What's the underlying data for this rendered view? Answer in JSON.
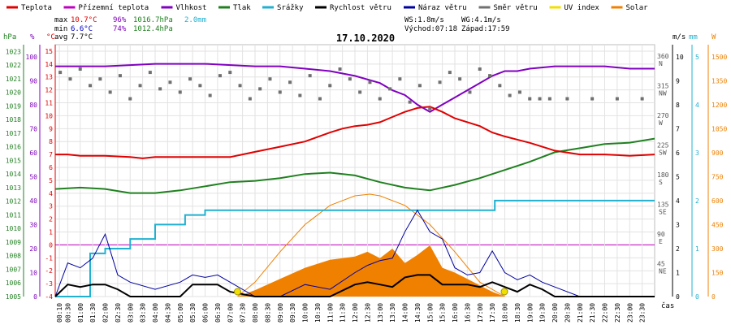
{
  "legend": [
    {
      "label": "Teplota",
      "color": "#e00000"
    },
    {
      "label": "Přízemní teplota",
      "color": "#c000c0"
    },
    {
      "label": "Vlhkost",
      "color": "#8000c0"
    },
    {
      "label": "Tlak",
      "color": "#208020"
    },
    {
      "label": "Srážky",
      "color": "#20b0d0"
    },
    {
      "label": "Rychlost větru",
      "color": "#000000"
    },
    {
      "label": "Náraz větru",
      "color": "#0000a0"
    },
    {
      "label": "Směr větru",
      "color": "#707070"
    },
    {
      "label": "UV index",
      "color": "#f0e000"
    },
    {
      "label": "Solar",
      "color": "#f08000"
    }
  ],
  "stats": {
    "max_label": "max",
    "max_temp": "10.7°C",
    "max_hum": "96%",
    "max_press": "1016.7hPa",
    "max_rain": "2.0mm",
    "min_label": "min",
    "min_temp": "6.6°C",
    "min_hum": "74%",
    "min_press": "1012.4hPa",
    "avg_label": "avg",
    "avg_temp": "7.7°C"
  },
  "wind_info": {
    "ws": "WS:1.8m/s",
    "wg": "WG:4.1m/s",
    "sunrise": "Východ:07:18",
    "sunset": "Západ:17:59"
  },
  "title": "17.10.2020",
  "axis_units": {
    "hpa": "hPa",
    "pct": "%",
    "degc": "°C",
    "ms": "m/s",
    "mm": "mm",
    "w": "W",
    "cas": "čas"
  },
  "chart_data": {
    "type": "line",
    "title": "17.10.2020",
    "time_labels": [
      "00:10",
      "00:30",
      "01:00",
      "01:30",
      "02:00",
      "02:30",
      "03:00",
      "03:30",
      "04:00",
      "04:30",
      "05:00",
      "05:30",
      "06:00",
      "06:30",
      "07:00",
      "07:30",
      "08:00",
      "08:30",
      "09:00",
      "09:30",
      "10:00",
      "10:30",
      "11:00",
      "11:30",
      "12:00",
      "12:30",
      "13:00",
      "13:30",
      "14:00",
      "14:30",
      "15:00",
      "15:30",
      "16:00",
      "16:30",
      "17:00",
      "17:30",
      "18:00",
      "18:30",
      "19:00",
      "19:30",
      "20:00",
      "20:30",
      "21:00",
      "21:30",
      "22:00",
      "22:30",
      "23:00",
      "23:30"
    ],
    "x_label": "čas",
    "axes": {
      "pressure_hpa": {
        "ticks": [
          1005,
          1006,
          1007,
          1008,
          1009,
          1010,
          1011,
          1012,
          1013,
          1014,
          1015,
          1016,
          1017,
          1018,
          1019,
          1020,
          1021,
          1022,
          1023
        ],
        "ylim": [
          1005,
          1023.5
        ]
      },
      "percent": {
        "ticks": [
          0,
          10,
          20,
          30,
          40,
          50,
          60,
          70,
          80,
          90,
          100
        ],
        "ylim": [
          0,
          105
        ]
      },
      "temperature_c": {
        "ticks": [
          -4,
          -3,
          -2,
          -1,
          0,
          1,
          2,
          3,
          4,
          5,
          6,
          7,
          8,
          9,
          10,
          11,
          12,
          13,
          14,
          15
        ],
        "ylim": [
          -4,
          15.5
        ]
      },
      "wind_direction": {
        "ticks": [
          "360 N",
          "315 NW",
          "270 W",
          "225 SW",
          "180 S",
          "135 SE",
          "90 E",
          "45 NE"
        ]
      },
      "wind_speed_ms": {
        "ticks": [
          0,
          1,
          2,
          3,
          4,
          5,
          6,
          7,
          8,
          9,
          10
        ],
        "ylim": [
          0,
          10.5
        ]
      },
      "rain_mm": {
        "ticks": [
          0,
          1,
          2,
          3,
          4,
          5
        ],
        "ylim": [
          0,
          5.25
        ]
      },
      "solar_w": {
        "ticks": [
          0,
          150,
          300,
          450,
          600,
          750,
          900,
          1050,
          1200,
          1350,
          1500
        ],
        "ylim": [
          0,
          1575
        ]
      }
    },
    "series": [
      {
        "name": "Teplota",
        "unit": "°C",
        "x_hours": [
          0,
          0.5,
          1,
          2,
          3,
          3.5,
          4,
          5,
          6,
          7,
          7.5,
          8,
          9,
          10,
          11,
          11.5,
          12,
          12.5,
          13,
          13.5,
          14,
          14.5,
          15,
          15.5,
          16,
          17,
          17.5,
          18,
          19,
          19.5,
          20,
          21,
          22,
          23,
          24
        ],
        "values": [
          7.0,
          7.0,
          6.9,
          6.9,
          6.8,
          6.7,
          6.8,
          6.8,
          6.8,
          6.8,
          7.0,
          7.2,
          7.6,
          8.0,
          8.7,
          9.0,
          9.2,
          9.3,
          9.5,
          9.9,
          10.3,
          10.6,
          10.7,
          10.3,
          9.8,
          9.2,
          8.7,
          8.4,
          7.9,
          7.6,
          7.3,
          7.0,
          7.0,
          6.9,
          7.0
        ]
      },
      {
        "name": "Přízemní teplota",
        "unit": "°C",
        "values": []
      },
      {
        "name": "Vlhkost",
        "unit": "%",
        "x_hours": [
          0,
          2,
          4,
          6,
          8,
          9,
          10,
          11,
          12,
          13,
          13.5,
          14,
          14.5,
          15,
          15.5,
          16,
          17,
          17.5,
          18,
          18.5,
          19,
          20,
          21,
          22,
          23,
          24
        ],
        "values": [
          96,
          96,
          97,
          97,
          96,
          96,
          95,
          94,
          92,
          89,
          86,
          84,
          80,
          77,
          80,
          83,
          89,
          92,
          94,
          94,
          95,
          96,
          96,
          96,
          95,
          95
        ]
      },
      {
        "name": "Tlak",
        "unit": "hPa",
        "x_hours": [
          0,
          1,
          2,
          3,
          4,
          5,
          6,
          7,
          8,
          9,
          10,
          11,
          12,
          13,
          14,
          15,
          16,
          17,
          18,
          19,
          20,
          21,
          22,
          23,
          24
        ],
        "values": [
          1012.9,
          1013.0,
          1012.9,
          1012.6,
          1012.6,
          1012.8,
          1013.1,
          1013.4,
          1013.5,
          1013.7,
          1014.0,
          1014.1,
          1013.9,
          1013.4,
          1013.0,
          1012.8,
          1013.2,
          1013.7,
          1014.3,
          1014.9,
          1015.6,
          1015.9,
          1016.2,
          1016.3,
          1016.6
        ]
      },
      {
        "name": "Srážky",
        "unit": "mm",
        "x_hours": [
          0,
          1.4,
          1.4,
          2.0,
          2.0,
          3.0,
          3.0,
          4.0,
          4.0,
          5.2,
          5.2,
          6.0,
          6.0,
          6.3,
          6.3,
          17.6,
          17.6,
          24
        ],
        "values": [
          0.0,
          0.0,
          0.9,
          0.9,
          1.0,
          1.0,
          1.2,
          1.2,
          1.5,
          1.5,
          1.7,
          1.7,
          1.8,
          1.8,
          1.8,
          1.8,
          2.0,
          2.0
        ]
      },
      {
        "name": "Rychlost větru",
        "unit": "m/s",
        "x_hours": [
          0,
          0.5,
          1,
          1.5,
          2,
          2.5,
          3,
          4,
          5,
          5.5,
          6,
          6.5,
          7,
          8,
          9,
          10,
          11,
          12,
          12.5,
          13,
          13.5,
          14,
          14.5,
          15,
          15.5,
          16,
          16.5,
          17,
          17.5,
          18,
          18.5,
          19,
          19.5,
          20,
          21,
          22,
          23,
          24
        ],
        "values": [
          0,
          0.5,
          0.4,
          0.5,
          0.5,
          0.3,
          0.0,
          0.0,
          0.0,
          0.5,
          0.5,
          0.5,
          0.2,
          0.0,
          0.0,
          0.0,
          0.0,
          0.5,
          0.6,
          0.5,
          0.4,
          0.8,
          0.9,
          0.9,
          0.5,
          0.5,
          0.5,
          0.4,
          0.6,
          0.4,
          0.2,
          0.5,
          0.3,
          0.0,
          0.0,
          0.0,
          0.0,
          0.0
        ]
      },
      {
        "name": "Náraz větru",
        "unit": "m/s",
        "x_hours": [
          0,
          0.5,
          1,
          1.5,
          2,
          2.5,
          3,
          4,
          5,
          5.5,
          6,
          6.5,
          7,
          8,
          9,
          10,
          11,
          12,
          12.5,
          13,
          13.5,
          14,
          14.5,
          15,
          15.5,
          16,
          16.5,
          17,
          17.5,
          18,
          18.5,
          19,
          19.5,
          20,
          21,
          22,
          23,
          24
        ],
        "values": [
          0,
          1.4,
          1.2,
          1.6,
          2.6,
          0.9,
          0.6,
          0.3,
          0.6,
          0.9,
          0.8,
          0.9,
          0.6,
          0.0,
          0.0,
          0.5,
          0.3,
          1.0,
          1.3,
          1.5,
          1.6,
          2.7,
          3.6,
          2.7,
          2.4,
          1.2,
          0.9,
          1.0,
          1.9,
          1.0,
          0.7,
          0.9,
          0.6,
          0.4,
          0.0,
          0.0,
          0.0,
          0.0
        ]
      },
      {
        "name": "Směr větru",
        "unit": "°",
        "scatter": true,
        "x_hours": [
          0.2,
          0.6,
          1.0,
          1.4,
          1.8,
          2.2,
          2.6,
          3.0,
          3.4,
          3.8,
          4.2,
          4.6,
          5.0,
          5.4,
          5.8,
          6.2,
          6.6,
          7.0,
          7.4,
          7.8,
          8.2,
          8.6,
          9.0,
          9.4,
          9.8,
          10.2,
          10.6,
          11.0,
          11.4,
          11.8,
          12.2,
          12.6,
          13.0,
          13.4,
          13.8,
          14.2,
          14.6,
          15.0,
          15.4,
          15.8,
          16.2,
          16.6,
          17.0,
          17.4,
          17.8,
          18.2,
          18.6,
          19.0,
          19.4,
          19.8,
          20.5,
          21.5,
          22.5,
          23.5
        ],
        "values": [
          340,
          330,
          345,
          320,
          330,
          310,
          335,
          300,
          320,
          340,
          315,
          325,
          310,
          330,
          320,
          305,
          335,
          340,
          320,
          300,
          315,
          330,
          310,
          325,
          305,
          335,
          300,
          320,
          345,
          330,
          310,
          325,
          300,
          315,
          330,
          295,
          320,
          285,
          325,
          340,
          330,
          310,
          345,
          335,
          320,
          305,
          310,
          300,
          300,
          300,
          300,
          300,
          300,
          300
        ]
      },
      {
        "name": "UV index",
        "unit": "",
        "values": []
      },
      {
        "name": "Solar",
        "unit": "W/m²",
        "x_hours": [
          7.3,
          8,
          9,
          10,
          11,
          12,
          12.5,
          13,
          13.5,
          14,
          14.5,
          15,
          15.5,
          16,
          16.5,
          17,
          17.5,
          18
        ],
        "values": [
          0,
          40,
          110,
          180,
          230,
          250,
          280,
          240,
          300,
          210,
          260,
          320,
          180,
          150,
          110,
          70,
          30,
          0
        ]
      },
      {
        "name": "Theoretical solar",
        "unit": "W/m²",
        "x_hours": [
          7.3,
          8,
          9,
          10,
          11,
          12,
          12.6,
          13,
          14,
          15,
          16,
          17,
          18
        ],
        "values": [
          0,
          90,
          280,
          450,
          570,
          630,
          640,
          630,
          570,
          450,
          280,
          90,
          0
        ]
      }
    ],
    "sun_markers": [
      "07:18",
      "17:59"
    ],
    "grid": true
  }
}
